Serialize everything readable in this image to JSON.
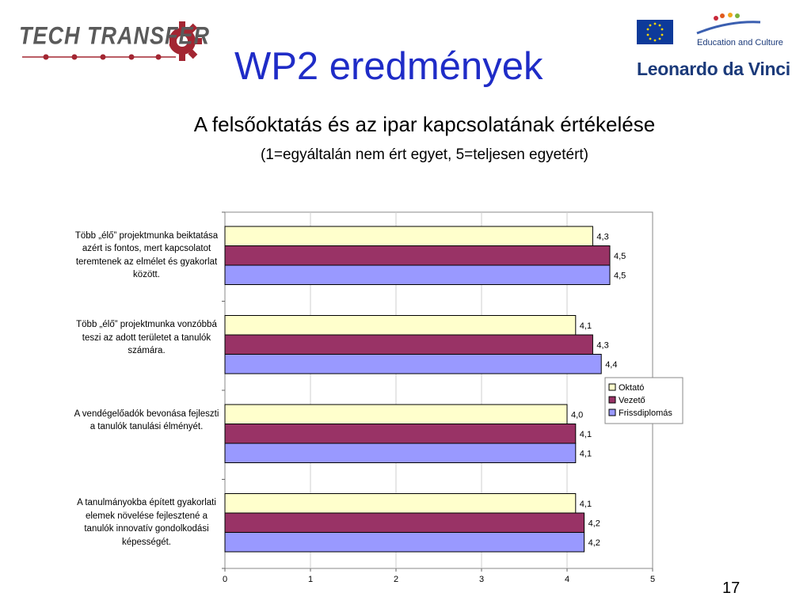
{
  "header": {
    "logo_left_text": "TECH TRANSFER",
    "logo_right_program": "Education and Culture",
    "logo_right_name": "Leonardo da Vinci",
    "title": "WP2 eredmények"
  },
  "subtitle": "A felsőoktatás és az ipar kapcsolatának értékelése",
  "scale_note": "(1=egyáltalán nem ért egyet, 5=teljesen egyetért)",
  "page_number": "17",
  "colors": {
    "title": "#1f2cc7",
    "series": [
      "#ffffcc",
      "#993366",
      "#9999ff"
    ],
    "logo_gear": "#a32632",
    "eu_flag": "#0d3a9a"
  },
  "chart_data": {
    "type": "bar",
    "orientation": "horizontal",
    "categories": [
      "Több „élő” projektmunka beiktatása azért is fontos, mert kapcsolatot teremtenek az elmélet és gyakorlat között.",
      "Több „élő” projektmunka vonzóbbá teszi az adott területet a tanulók számára.",
      "A vendégelőadók bevonása fejleszti a tanulók tanulási élményét.",
      "A tanulmányokba épített gyakorlati elemek növelése fejlesztené a tanulók innovatív gondolkodási képességét."
    ],
    "series": [
      {
        "name": "Oktató",
        "values": [
          4.3,
          4.1,
          4.0,
          4.1
        ],
        "labels": [
          "4,3",
          "4,1",
          "4,0",
          "4,1"
        ]
      },
      {
        "name": "Vezető",
        "values": [
          4.5,
          4.3,
          4.1,
          4.2
        ],
        "labels": [
          "4,5",
          "4,3",
          "4,1",
          "4,2"
        ]
      },
      {
        "name": "Frissdiplomás",
        "values": [
          4.5,
          4.4,
          4.1,
          4.2
        ],
        "labels": [
          "4,5",
          "4,4",
          "4,1",
          "4,2"
        ]
      }
    ],
    "xlim": [
      0,
      5
    ],
    "xticks": [
      "0",
      "1",
      "2",
      "3",
      "4",
      "5"
    ],
    "grid": true,
    "legend_position": "right"
  }
}
